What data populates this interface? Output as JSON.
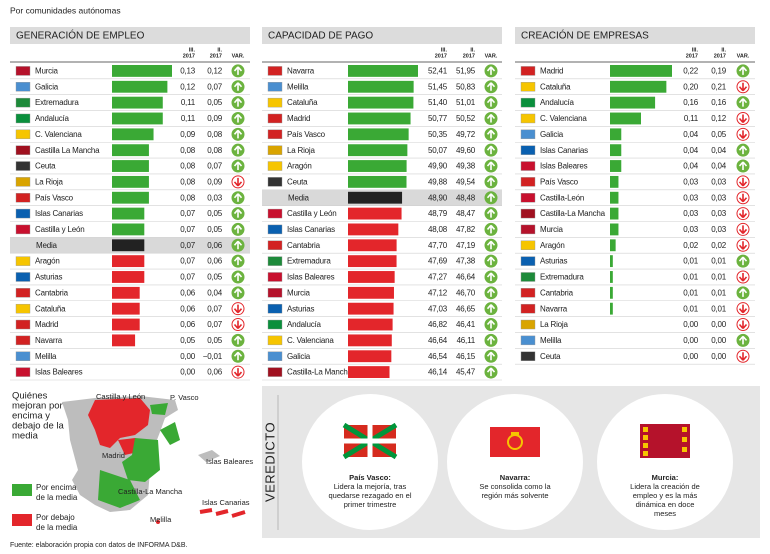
{
  "subtitle": "Por comunidades autónomas",
  "columns": {
    "iii": [
      "III.",
      "2017"
    ],
    "ii": [
      "II.",
      "2017"
    ],
    "var": "VAR."
  },
  "colors": {
    "above": "#3aa935",
    "media": "#222222",
    "below": "#e3262b",
    "up": "#6cb33f",
    "down": "#e3262b"
  },
  "flags": {
    "Murcia": "#b5122b",
    "Galicia": "#4a8fd0",
    "Extremadura": "#1d8a3a",
    "Andalucía": "#0a8f3c",
    "C. Valenciana": "#f6c500",
    "Castilla La Mancha": "#a0101f",
    "Castilla-La Mancha": "#a0101f",
    "Ceuta": "#333333",
    "La Rioja": "#d9a400",
    "País Vasco": "#d22222",
    "Islas Canarias": "#0a60b0",
    "Castilla y León": "#c8102e",
    "Castilla-León": "#c8102e",
    "Aragón": "#f6c500",
    "Asturias": "#0a60b0",
    "Cantabria": "#d22222",
    "Cataluña": "#f6c500",
    "Madrid": "#d22222",
    "Navarra": "#d22222",
    "Melilla": "#4a8fd0",
    "Islas Baleares": "#c8102e"
  },
  "tables": [
    {
      "title": "GENERACIÓN DE EMPLEO",
      "xlim": [
        0,
        0.13
      ],
      "categories": [
        "Murcia",
        "Galicia",
        "Extremadura",
        "Andalucía",
        "C. Valenciana",
        "Castilla La Mancha",
        "Ceuta",
        "La Rioja",
        "País Vasco",
        "Islas Canarias",
        "Castilla y León",
        "Media",
        "Aragón",
        "Asturias",
        "Cantabria",
        "Cataluña",
        "Madrid",
        "Navarra",
        "Melilla",
        "Islas Baleares"
      ],
      "values": [
        0.13,
        0.12,
        0.11,
        0.11,
        0.09,
        0.08,
        0.08,
        0.08,
        0.08,
        0.07,
        0.07,
        0.07,
        0.07,
        0.07,
        0.06,
        0.06,
        0.06,
        0.05,
        0.0,
        0.0
      ],
      "value_labels": [
        "0,13",
        "0,12",
        "0,11",
        "0,11",
        "0,09",
        "0,08",
        "0,08",
        "0,08",
        "0,08",
        "0,07",
        "0,07",
        "0,07",
        "0,07",
        "0,07",
        "0,06",
        "0,06",
        "0,06",
        "0,05",
        "0,00",
        "0,00"
      ],
      "prev_labels": [
        "0,12",
        "0,07",
        "0,05",
        "0,09",
        "0,08",
        "0,08",
        "0,07",
        "0,09",
        "0,03",
        "0,05",
        "0,05",
        "0,06",
        "0,06",
        "0,05",
        "0,04",
        "0,07",
        "0,07",
        "0,05",
        "−0,01",
        "0,06"
      ],
      "trend": [
        "up",
        "up",
        "up",
        "up",
        "up",
        "up",
        "up",
        "down",
        "up",
        "up",
        "up",
        "up",
        "up",
        "up",
        "up",
        "down",
        "down",
        "up",
        "up",
        "down"
      ]
    },
    {
      "title": "CAPACIDAD DE PAGO",
      "xlim": [
        37,
        52.41
      ],
      "categories": [
        "Navarra",
        "Melilla",
        "Cataluña",
        "Madrid",
        "País Vasco",
        "La Rioja",
        "Aragón",
        "Ceuta",
        "Media",
        "Castilla y León",
        "Islas Canarias",
        "Cantabria",
        "Extremadura",
        "Islas Baleares",
        "Murcia",
        "Asturias",
        "Andalucía",
        "C. Valenciana",
        "Galicia",
        "Castilla-La Mancha"
      ],
      "values": [
        52.41,
        51.45,
        51.4,
        50.77,
        50.35,
        50.07,
        49.9,
        49.88,
        48.9,
        48.79,
        48.08,
        47.7,
        47.69,
        47.27,
        47.12,
        47.03,
        46.82,
        46.64,
        46.54,
        46.14
      ],
      "value_labels": [
        "52,41",
        "51,45",
        "51,40",
        "50,77",
        "50,35",
        "50,07",
        "49,90",
        "49,88",
        "48,90",
        "48,79",
        "48,08",
        "47,70",
        "47,69",
        "47,27",
        "47,12",
        "47,03",
        "46,82",
        "46,64",
        "46,54",
        "46,14"
      ],
      "prev_labels": [
        "51,95",
        "50,83",
        "51,01",
        "50,52",
        "49,72",
        "49,60",
        "49,38",
        "49,54",
        "48,48",
        "48,47",
        "47,82",
        "47,19",
        "47,38",
        "46,64",
        "46,70",
        "46,65",
        "46,41",
        "46,11",
        "46,15",
        "45,47"
      ],
      "trend": [
        "up",
        "up",
        "up",
        "up",
        "up",
        "up",
        "up",
        "up",
        "up",
        "up",
        "up",
        "up",
        "up",
        "up",
        "up",
        "up",
        "up",
        "up",
        "up",
        "up"
      ]
    },
    {
      "title": "CREACIÓN DE EMPRESAS",
      "xlim": [
        0,
        0.22
      ],
      "categories": [
        "Madrid",
        "Cataluña",
        "Andalucía",
        "C. Valenciana",
        "Galicia",
        "Islas Canarias",
        "Islas Baleares",
        "País Vasco",
        "Castilla-León",
        "Castilla-La Mancha",
        "Murcia",
        "Aragón",
        "Asturias",
        "Extremadura",
        "Cantabria",
        "Navarra",
        "La Rioja",
        "Melilla",
        "Ceuta"
      ],
      "values": [
        0.22,
        0.2,
        0.16,
        0.11,
        0.04,
        0.04,
        0.04,
        0.03,
        0.03,
        0.03,
        0.03,
        0.02,
        0.01,
        0.01,
        0.01,
        0.01,
        0.0,
        0.0,
        0.0
      ],
      "value_labels": [
        "0,22",
        "0,20",
        "0,16",
        "0,11",
        "0,04",
        "0,04",
        "0,04",
        "0,03",
        "0,03",
        "0,03",
        "0,03",
        "0,02",
        "0,01",
        "0,01",
        "0,01",
        "0,01",
        "0,00",
        "0,00",
        "0,00"
      ],
      "prev_labels": [
        "0,19",
        "0,21",
        "0,16",
        "0,12",
        "0,05",
        "0,04",
        "0,04",
        "0,03",
        "0,03",
        "0,03",
        "0,03",
        "0,02",
        "0,01",
        "0,01",
        "0,01",
        "0,01",
        "0,00",
        "0,00",
        "0,00"
      ],
      "trend": [
        "up",
        "down",
        "up",
        "down",
        "down",
        "up",
        "up",
        "down",
        "down",
        "down",
        "down",
        "down",
        "up",
        "down",
        "up",
        "down",
        "down",
        "up",
        "down"
      ]
    }
  ],
  "map": {
    "title": [
      "Quiénes",
      "mejoran por",
      "encima y",
      "debajo de la",
      "media"
    ],
    "labels": [
      "Castilla y León",
      "P. Vasco",
      "Madrid",
      "Islas Baleares",
      "Castilla-La Mancha",
      "Islas Canarias",
      "Melilla"
    ],
    "legend": [
      [
        "Por encima",
        "de la media"
      ],
      [
        "Por debajo",
        "de la media"
      ]
    ]
  },
  "verdict": {
    "title": "VEREDICTO",
    "items": [
      {
        "name": "País Vasco:",
        "text": [
          "Lidera la mejoría, tras",
          "quedarse rezagado en el",
          "primer trimestre"
        ]
      },
      {
        "name": "Navarra:",
        "text": [
          "Se consolida como la",
          "región más solvente"
        ]
      },
      {
        "name": "Murcia:",
        "text": [
          "Lidera la creación de",
          "empleo y es la más",
          "dinámica en doce",
          "meses"
        ]
      }
    ]
  },
  "source": "Fuente: elaboración propia con datos de INFORMA D&B."
}
